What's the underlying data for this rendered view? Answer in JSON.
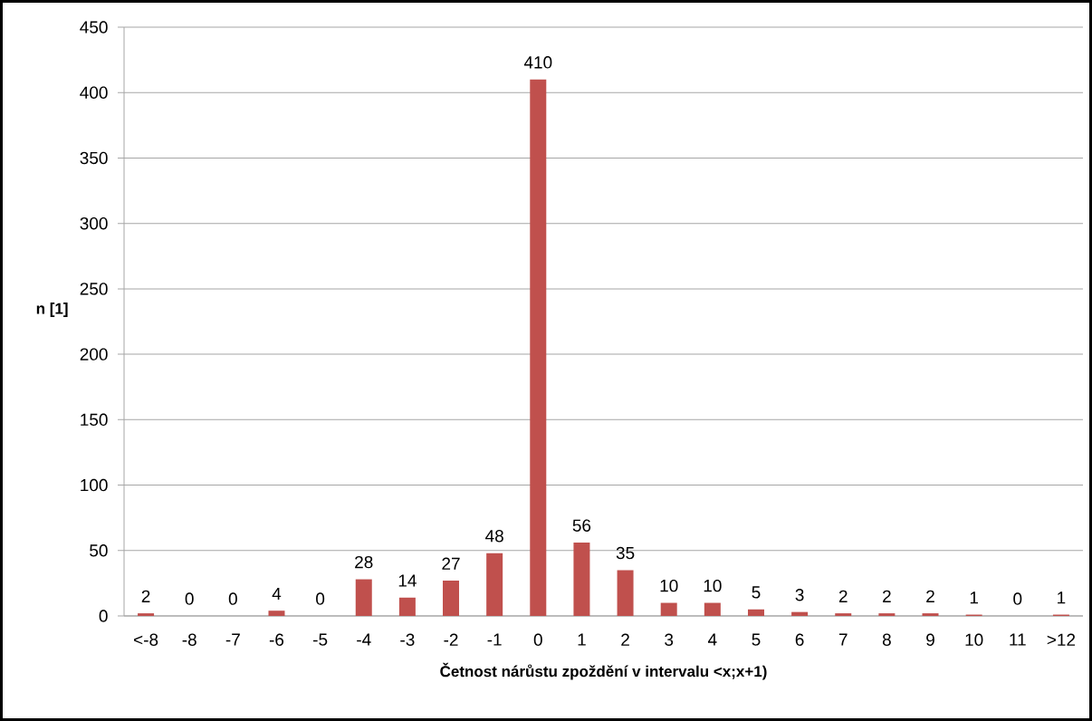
{
  "chart_data": {
    "type": "bar",
    "xlabel": "**Četnost nárůstu zpoždění v intervalu <x;x+1)**",
    "ylabel": "**n [1]**",
    "categories": [
      "<-8",
      "-8",
      "-7",
      "-6",
      "-5",
      "-4",
      "-3",
      "-2",
      "-1",
      "0",
      "1",
      "2",
      "3",
      "4",
      "5",
      "6",
      "7",
      "8",
      "9",
      "10",
      "11",
      ">12"
    ],
    "values": [
      2,
      0,
      0,
      4,
      0,
      28,
      14,
      27,
      48,
      410,
      56,
      35,
      10,
      10,
      5,
      3,
      2,
      2,
      2,
      1,
      0,
      1
    ],
    "color": "#c0504d",
    "ylim": [
      0,
      450
    ],
    "yticks": [
      0,
      50,
      100,
      150,
      200,
      250,
      300,
      350,
      400,
      450
    ],
    "grid": "y",
    "data_labels": true
  }
}
